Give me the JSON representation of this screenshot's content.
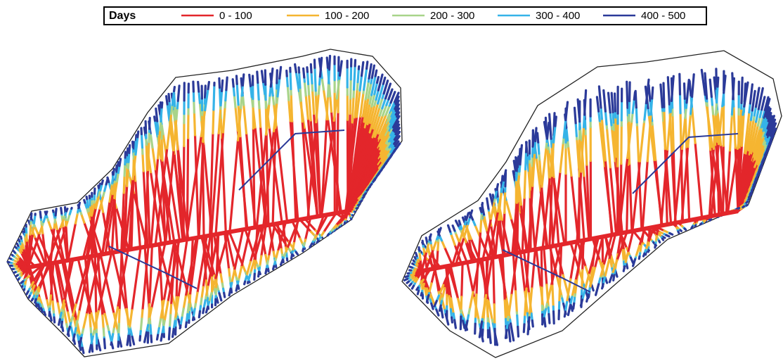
{
  "legend": {
    "title": "Days",
    "items": [
      {
        "label": "0 - 100",
        "color": "#e3262b"
      },
      {
        "label": "100 - 200",
        "color": "#f5b531"
      },
      {
        "label": "200 - 300",
        "color": "#a8d48a"
      },
      {
        "label": "300 - 400",
        "color": "#35b3e8"
      },
      {
        "label": "400 - 500",
        "color": "#2b3a99"
      }
    ]
  }
}
